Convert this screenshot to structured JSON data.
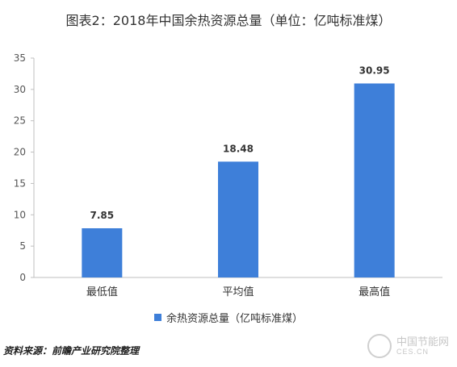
{
  "chart_data": {
    "type": "bar",
    "title": "图表2：2018年中国余热资源总量（单位：亿吨标准煤）",
    "categories": [
      "最低值",
      "平均值",
      "最高值"
    ],
    "series": [
      {
        "name": "余热资源总量（亿吨标准煤）",
        "values": [
          7.85,
          18.48,
          30.95
        ]
      }
    ],
    "data_labels": [
      "7.85",
      "18.48",
      "30.95"
    ],
    "ylim": [
      0,
      35
    ],
    "yticks": [
      0,
      5,
      10,
      15,
      20,
      25,
      30,
      35
    ],
    "grid": false,
    "legend_position": "bottom",
    "bar_color": "#3e7fd9"
  },
  "source": "资料来源：前瞻产业研究院整理",
  "watermark": {
    "name": "中国节能网",
    "url": "CES.CN"
  }
}
